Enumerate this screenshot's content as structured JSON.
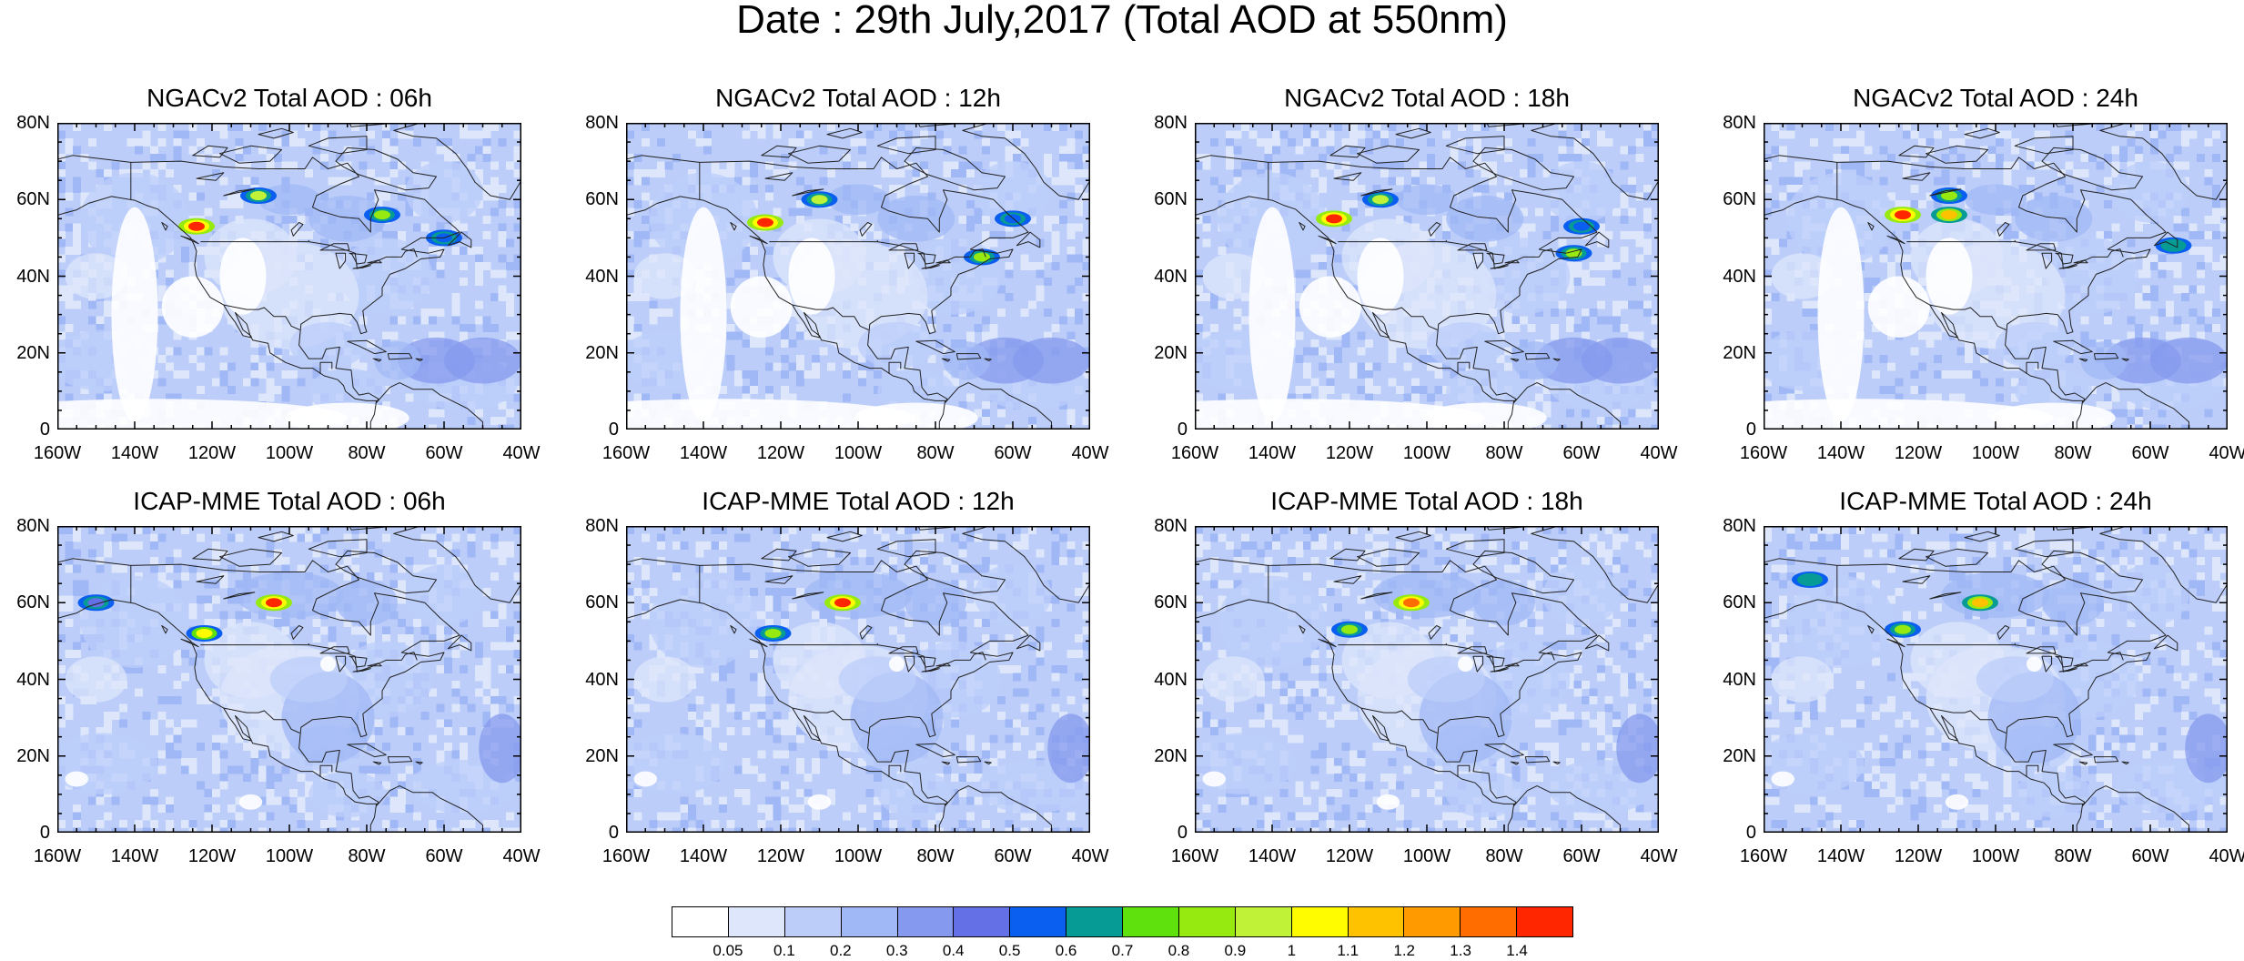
{
  "title": "Date : 29th July,2017 (Total AOD at 550nm)",
  "x_ticks": [
    "160W",
    "140W",
    "120W",
    "100W",
    "80W",
    "60W",
    "40W"
  ],
  "y_ticks": [
    "80N",
    "60N",
    "40N",
    "20N",
    "0"
  ],
  "rows": [
    {
      "model": "NGACv2",
      "panels": [
        {
          "title": "NGACv2 Total AOD : 06h",
          "plumes": [
            {
              "lon": -124,
              "lat": 53,
              "aod": 1.4
            },
            {
              "lon": -108,
              "lat": 61,
              "aod": 0.9
            },
            {
              "lon": -76,
              "lat": 56,
              "aod": 0.8
            },
            {
              "lon": -60,
              "lat": 50,
              "aod": 0.5
            }
          ]
        },
        {
          "title": "NGACv2 Total AOD : 12h",
          "plumes": [
            {
              "lon": -124,
              "lat": 54,
              "aod": 1.4
            },
            {
              "lon": -110,
              "lat": 60,
              "aod": 0.9
            },
            {
              "lon": -68,
              "lat": 45,
              "aod": 0.8
            },
            {
              "lon": -60,
              "lat": 55,
              "aod": 0.5
            }
          ]
        },
        {
          "title": "NGACv2 Total AOD : 18h",
          "plumes": [
            {
              "lon": -124,
              "lat": 55,
              "aod": 1.4
            },
            {
              "lon": -112,
              "lat": 60,
              "aod": 0.9
            },
            {
              "lon": -62,
              "lat": 46,
              "aod": 0.8
            },
            {
              "lon": -60,
              "lat": 53,
              "aod": 0.5
            }
          ]
        },
        {
          "title": "NGACv2 Total AOD : 24h",
          "plumes": [
            {
              "lon": -124,
              "lat": 56,
              "aod": 1.4
            },
            {
              "lon": -112,
              "lat": 56,
              "aod": 1.1
            },
            {
              "lon": -112,
              "lat": 61,
              "aod": 0.8
            },
            {
              "lon": -54,
              "lat": 48,
              "aod": 0.6
            }
          ]
        }
      ]
    },
    {
      "model": "ICAP-MME",
      "panels": [
        {
          "title": "ICAP-MME Total AOD : 06h",
          "plumes": [
            {
              "lon": -104,
              "lat": 60,
              "aod": 1.4
            },
            {
              "lon": -122,
              "lat": 52,
              "aod": 1.0
            },
            {
              "lon": -150,
              "lat": 60,
              "aod": 0.4
            }
          ]
        },
        {
          "title": "ICAP-MME Total AOD : 12h",
          "plumes": [
            {
              "lon": -104,
              "lat": 60,
              "aod": 1.4
            },
            {
              "lon": -122,
              "lat": 52,
              "aod": 0.8
            }
          ]
        },
        {
          "title": "ICAP-MME Total AOD : 18h",
          "plumes": [
            {
              "lon": -104,
              "lat": 60,
              "aod": 1.3
            },
            {
              "lon": -120,
              "lat": 53,
              "aod": 0.8
            }
          ]
        },
        {
          "title": "ICAP-MME Total AOD : 24h",
          "plumes": [
            {
              "lon": -104,
              "lat": 60,
              "aod": 1.1
            },
            {
              "lon": -124,
              "lat": 53,
              "aod": 0.8
            },
            {
              "lon": -148,
              "lat": 66,
              "aod": 0.6
            }
          ]
        }
      ]
    }
  ],
  "colorbar": {
    "labels": [
      "0.05",
      "0.1",
      "0.2",
      "0.3",
      "0.4",
      "0.5",
      "0.6",
      "0.7",
      "0.8",
      "0.9",
      "1",
      "1.1",
      "1.2",
      "1.3",
      "1.4"
    ],
    "colors": [
      "#ffffff",
      "#dde6fb",
      "#bccdf9",
      "#a0b8f6",
      "#8599ee",
      "#6470e6",
      "#0a5ef0",
      "#079b96",
      "#5ee10c",
      "#96ea10",
      "#c0f238",
      "#fffc00",
      "#ffc200",
      "#ff9b00",
      "#ff6d00",
      "#ff2600"
    ]
  },
  "chart_data": {
    "type": "heatmap",
    "title": "Date : 29th July,2017 (Total AOD at 550nm)",
    "variable": "Total AOD at 550nm",
    "xlim": [
      -160,
      -40
    ],
    "ylim": [
      0,
      80
    ],
    "levels": [
      0.05,
      0.1,
      0.2,
      0.3,
      0.4,
      0.5,
      0.6,
      0.7,
      0.8,
      0.9,
      1,
      1.1,
      1.2,
      1.3,
      1.4
    ],
    "panels": [
      "NGACv2 Total AOD : 06h",
      "NGACv2 Total AOD : 12h",
      "NGACv2 Total AOD : 18h",
      "NGACv2 Total AOD : 24h",
      "ICAP-MME Total AOD : 06h",
      "ICAP-MME Total AOD : 12h",
      "ICAP-MME Total AOD : 18h",
      "ICAP-MME Total AOD : 24h"
    ]
  }
}
